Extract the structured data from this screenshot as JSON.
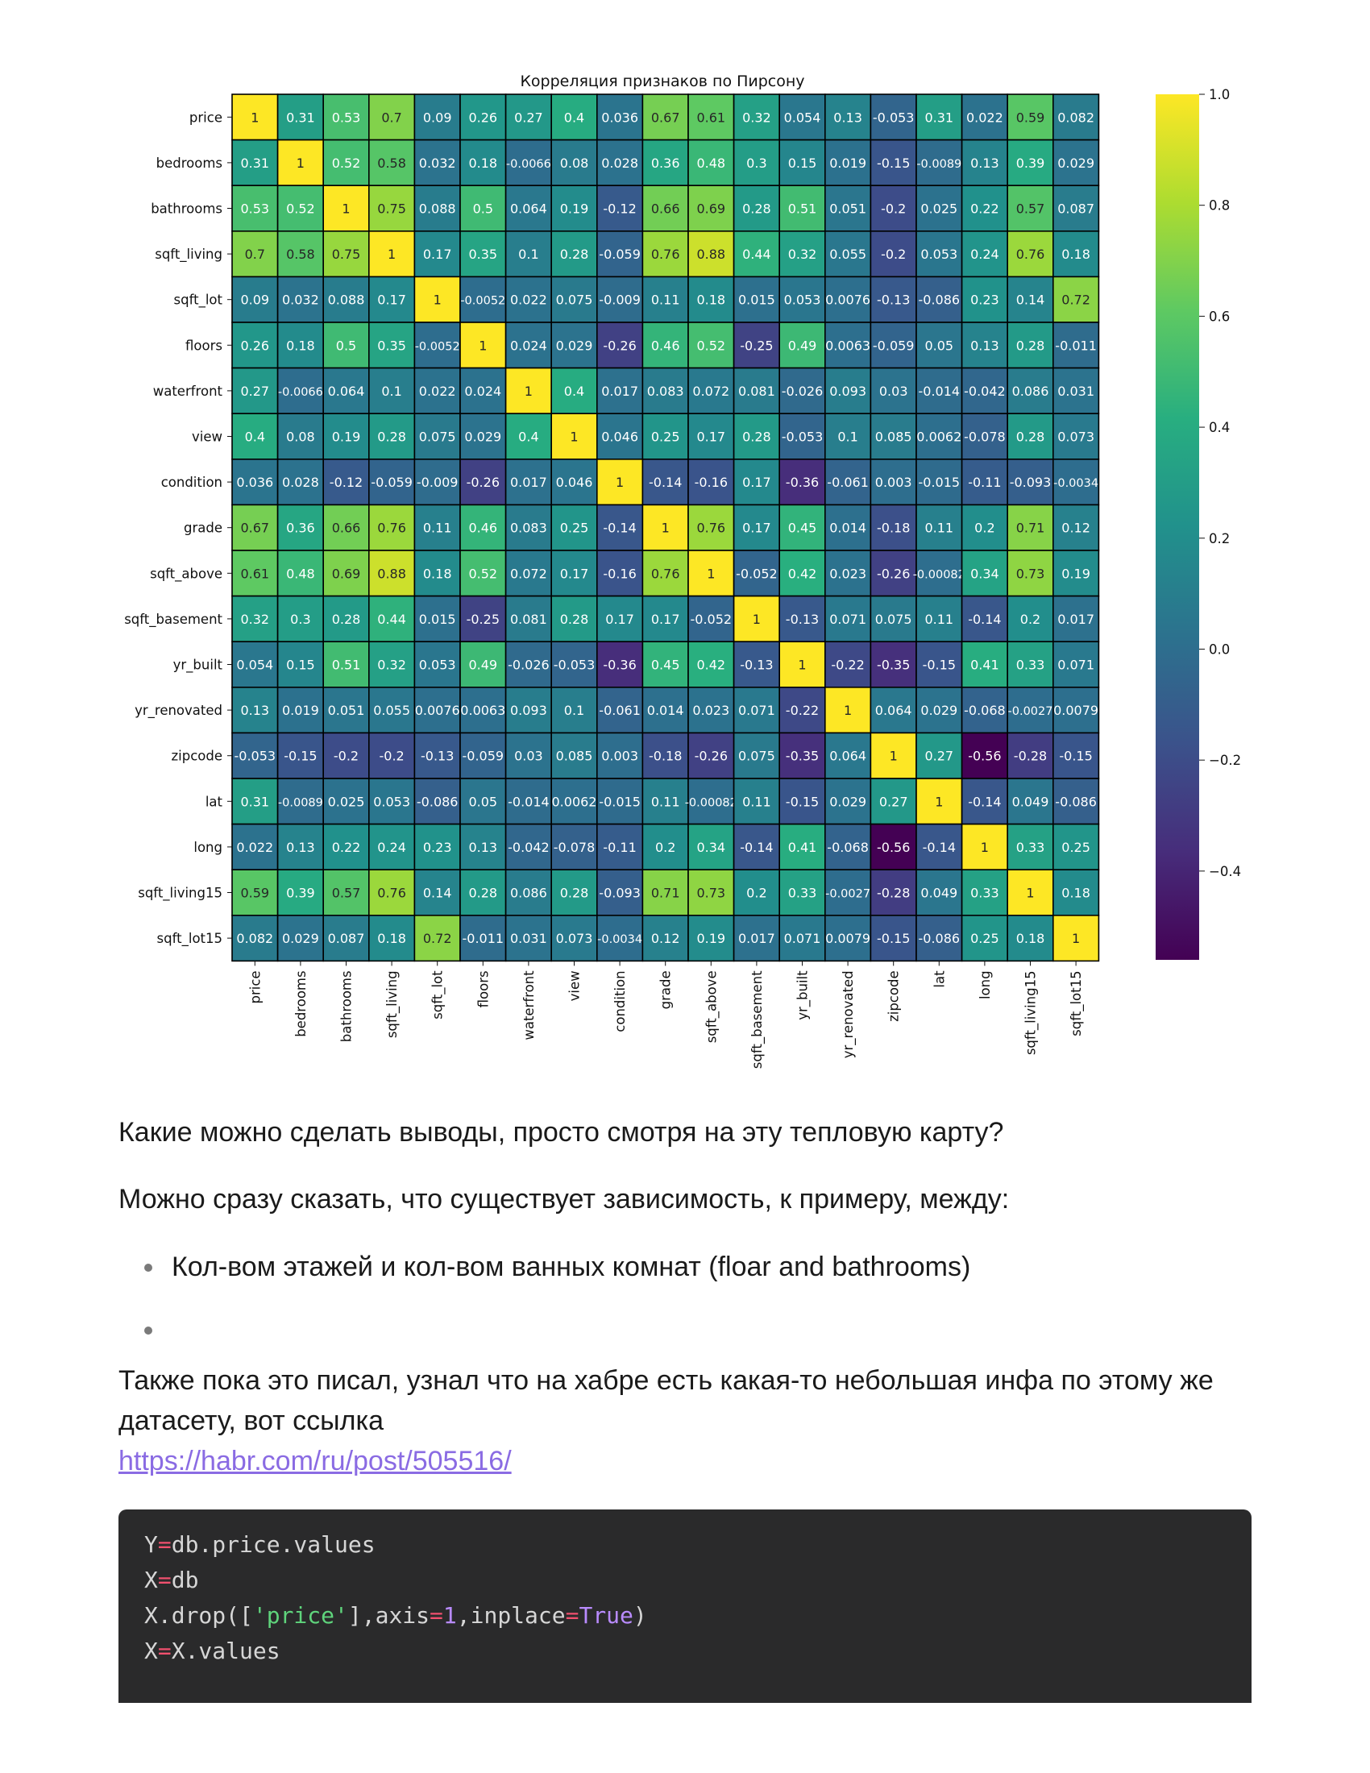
{
  "chart_data": {
    "type": "heatmap",
    "title": "Корреляция признаков по Пирсону",
    "labels": [
      "price",
      "bedrooms",
      "bathrooms",
      "sqft_living",
      "sqft_lot",
      "floors",
      "waterfront",
      "view",
      "condition",
      "grade",
      "sqft_above",
      "sqft_basement",
      "yr_built",
      "yr_renovated",
      "zipcode",
      "lat",
      "long",
      "sqft_living15",
      "sqft_lot15"
    ],
    "matrix": [
      [
        "1",
        "0.31",
        "0.53",
        "0.7",
        "0.09",
        "0.26",
        "0.27",
        "0.4",
        "0.036",
        "0.67",
        "0.61",
        "0.32",
        "0.054",
        "0.13",
        "-0.053",
        "0.31",
        "0.022",
        "0.59",
        "0.082"
      ],
      [
        "0.31",
        "1",
        "0.52",
        "0.58",
        "0.032",
        "0.18",
        "-0.0066",
        "0.08",
        "0.028",
        "0.36",
        "0.48",
        "0.3",
        "0.15",
        "0.019",
        "-0.15",
        "-0.0089",
        "0.13",
        "0.39",
        "0.029"
      ],
      [
        "0.53",
        "0.52",
        "1",
        "0.75",
        "0.088",
        "0.5",
        "0.064",
        "0.19",
        "-0.12",
        "0.66",
        "0.69",
        "0.28",
        "0.51",
        "0.051",
        "-0.2",
        "0.025",
        "0.22",
        "0.57",
        "0.087"
      ],
      [
        "0.7",
        "0.58",
        "0.75",
        "1",
        "0.17",
        "0.35",
        "0.1",
        "0.28",
        "-0.059",
        "0.76",
        "0.88",
        "0.44",
        "0.32",
        "0.055",
        "-0.2",
        "0.053",
        "0.24",
        "0.76",
        "0.18"
      ],
      [
        "0.09",
        "0.032",
        "0.088",
        "0.17",
        "1",
        "-0.0052",
        "0.022",
        "0.075",
        "-0.009",
        "0.11",
        "0.18",
        "0.015",
        "0.053",
        "0.0076",
        "-0.13",
        "-0.086",
        "0.23",
        "0.14",
        "0.72"
      ],
      [
        "0.26",
        "0.18",
        "0.5",
        "0.35",
        "-0.0052",
        "1",
        "0.024",
        "0.029",
        "-0.26",
        "0.46",
        "0.52",
        "-0.25",
        "0.49",
        "0.0063",
        "-0.059",
        "0.05",
        "0.13",
        "0.28",
        "-0.011"
      ],
      [
        "0.27",
        "-0.0066",
        "0.064",
        "0.1",
        "0.022",
        "0.024",
        "1",
        "0.4",
        "0.017",
        "0.083",
        "0.072",
        "0.081",
        "-0.026",
        "0.093",
        "0.03",
        "-0.014",
        "-0.042",
        "0.086",
        "0.031"
      ],
      [
        "0.4",
        "0.08",
        "0.19",
        "0.28",
        "0.075",
        "0.029",
        "0.4",
        "1",
        "0.046",
        "0.25",
        "0.17",
        "0.28",
        "-0.053",
        "0.1",
        "0.085",
        "0.0062",
        "-0.078",
        "0.28",
        "0.073"
      ],
      [
        "0.036",
        "0.028",
        "-0.12",
        "-0.059",
        "-0.009",
        "-0.26",
        "0.017",
        "0.046",
        "1",
        "-0.14",
        "-0.16",
        "0.17",
        "-0.36",
        "-0.061",
        "0.003",
        "-0.015",
        "-0.11",
        "-0.093",
        "-0.0034"
      ],
      [
        "0.67",
        "0.36",
        "0.66",
        "0.76",
        "0.11",
        "0.46",
        "0.083",
        "0.25",
        "-0.14",
        "1",
        "0.76",
        "0.17",
        "0.45",
        "0.014",
        "-0.18",
        "0.11",
        "0.2",
        "0.71",
        "0.12"
      ],
      [
        "0.61",
        "0.48",
        "0.69",
        "0.88",
        "0.18",
        "0.52",
        "0.072",
        "0.17",
        "-0.16",
        "0.76",
        "1",
        "-0.052",
        "0.42",
        "0.023",
        "-0.26",
        "-0.00082",
        "0.34",
        "0.73",
        "0.19"
      ],
      [
        "0.32",
        "0.3",
        "0.28",
        "0.44",
        "0.015",
        "-0.25",
        "0.081",
        "0.28",
        "0.17",
        "0.17",
        "-0.052",
        "1",
        "-0.13",
        "0.071",
        "0.075",
        "0.11",
        "-0.14",
        "0.2",
        "0.017"
      ],
      [
        "0.054",
        "0.15",
        "0.51",
        "0.32",
        "0.053",
        "0.49",
        "-0.026",
        "-0.053",
        "-0.36",
        "0.45",
        "0.42",
        "-0.13",
        "1",
        "-0.22",
        "-0.35",
        "-0.15",
        "0.41",
        "0.33",
        "0.071"
      ],
      [
        "0.13",
        "0.019",
        "0.051",
        "0.055",
        "0.0076",
        "0.0063",
        "0.093",
        "0.1",
        "-0.061",
        "0.014",
        "0.023",
        "0.071",
        "-0.22",
        "1",
        "0.064",
        "0.029",
        "-0.068",
        "-0.0027",
        "0.0079"
      ],
      [
        "-0.053",
        "-0.15",
        "-0.2",
        "-0.2",
        "-0.13",
        "-0.059",
        "0.03",
        "0.085",
        "0.003",
        "-0.18",
        "-0.26",
        "0.075",
        "-0.35",
        "0.064",
        "1",
        "0.27",
        "-0.56",
        "-0.28",
        "-0.15"
      ],
      [
        "0.31",
        "-0.0089",
        "0.025",
        "0.053",
        "-0.086",
        "0.05",
        "-0.014",
        "0.0062",
        "-0.015",
        "0.11",
        "-0.00082",
        "0.11",
        "-0.15",
        "0.029",
        "0.27",
        "1",
        "-0.14",
        "0.049",
        "-0.086"
      ],
      [
        "0.022",
        "0.13",
        "0.22",
        "0.24",
        "0.23",
        "0.13",
        "-0.042",
        "-0.078",
        "-0.11",
        "0.2",
        "0.34",
        "-0.14",
        "0.41",
        "-0.068",
        "-0.56",
        "-0.14",
        "1",
        "0.33",
        "0.25"
      ],
      [
        "0.59",
        "0.39",
        "0.57",
        "0.76",
        "0.14",
        "0.28",
        "0.086",
        "0.28",
        "-0.093",
        "0.71",
        "0.73",
        "0.2",
        "0.33",
        "-0.0027",
        "-0.28",
        "0.049",
        "0.33",
        "1",
        "0.18"
      ],
      [
        "0.082",
        "0.029",
        "0.087",
        "0.18",
        "0.72",
        "-0.011",
        "0.031",
        "0.073",
        "-0.0034",
        "0.12",
        "0.19",
        "0.017",
        "0.071",
        "0.0079",
        "-0.15",
        "-0.086",
        "0.25",
        "0.18",
        "1"
      ]
    ],
    "vmin": -0.56,
    "vmax": 1.0,
    "colormap": "viridis",
    "colorbar_ticks": [
      {
        "value": 1.0,
        "label": "1.0"
      },
      {
        "value": 0.8,
        "label": "0.8"
      },
      {
        "value": 0.6,
        "label": "0.6"
      },
      {
        "value": 0.4,
        "label": "0.4"
      },
      {
        "value": 0.2,
        "label": "0.2"
      },
      {
        "value": 0.0,
        "label": "0.0"
      },
      {
        "value": -0.2,
        "label": "−0.2"
      },
      {
        "value": -0.4,
        "label": "−0.4"
      }
    ],
    "cell_border_color": "#000000"
  },
  "article": {
    "question": "Какие можно сделать выводы, просто смотря на эту тепловую карту?",
    "intro": "Можно сразу сказать, что существует зависимость, к примеру, между:",
    "bullets": [
      "Кол-вом этажей и кол-вом ванных комнат (floar and bathrooms)",
      ""
    ],
    "note": "Также пока это писал, узнал что на хабре есть какая-то небольшая инфа по этому же датасету, вот ссылка",
    "link": "https://habr.com/ru/post/505516/"
  },
  "code": {
    "lines": [
      [
        {
          "t": "Y",
          "c": ""
        },
        {
          "t": "=",
          "c": "op"
        },
        {
          "t": "db.price.values",
          "c": ""
        }
      ],
      [
        {
          "t": "X",
          "c": ""
        },
        {
          "t": "=",
          "c": "op"
        },
        {
          "t": "db",
          "c": ""
        }
      ],
      [
        {
          "t": "X.drop([",
          "c": ""
        },
        {
          "t": "'price'",
          "c": "str"
        },
        {
          "t": "],axis",
          "c": ""
        },
        {
          "t": "=",
          "c": "op"
        },
        {
          "t": "1",
          "c": "num"
        },
        {
          "t": ",inplace",
          "c": ""
        },
        {
          "t": "=",
          "c": "op"
        },
        {
          "t": "True",
          "c": "kw"
        },
        {
          "t": ")",
          "c": ""
        }
      ],
      [
        {
          "t": "X",
          "c": ""
        },
        {
          "t": "=",
          "c": "op"
        },
        {
          "t": "X.values",
          "c": ""
        }
      ]
    ]
  }
}
